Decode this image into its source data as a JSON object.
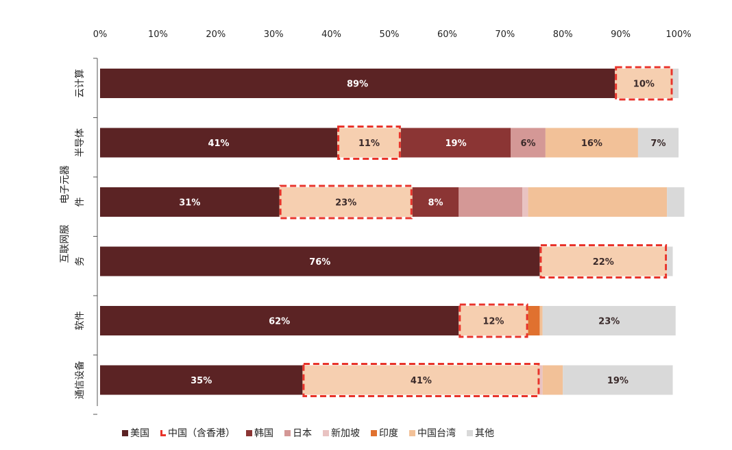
{
  "chart_data": {
    "type": "bar",
    "orientation": "horizontal",
    "stacked": true,
    "x_axis_position": "top",
    "xlim": [
      0,
      100
    ],
    "x_ticks": [
      "0%",
      "10%",
      "20%",
      "30%",
      "40%",
      "50%",
      "60%",
      "70%",
      "80%",
      "90%",
      "100%"
    ],
    "grid": false,
    "legend_position": "bottom",
    "categories": [
      "云计算",
      "半导体",
      "电子元器件",
      "互联网服务",
      "软件",
      "通信设备"
    ],
    "series": [
      {
        "name": "美国",
        "color": "#5b2324",
        "values": [
          89,
          41,
          31,
          76,
          62,
          35
        ],
        "labels": [
          "89%",
          "41%",
          "31%",
          "76%",
          "62%",
          "35%"
        ]
      },
      {
        "name": "中国（含香港）",
        "color": "#f6cfb0",
        "values": [
          10,
          11,
          23,
          22,
          12,
          41
        ],
        "labels": [
          "10%",
          "11%",
          "23%",
          "22%",
          "12%",
          "41%"
        ],
        "highlight": "red-dashed-border"
      },
      {
        "name": "韩国",
        "color": "#8b3534",
        "values": [
          0,
          19,
          8,
          0,
          0,
          0
        ],
        "labels": [
          "",
          "19%",
          "8%",
          "",
          "",
          ""
        ]
      },
      {
        "name": "日本",
        "color": "#d49896",
        "values": [
          0,
          6,
          11,
          0,
          0,
          0
        ],
        "labels": [
          "",
          "6%",
          "",
          "",
          "",
          ""
        ]
      },
      {
        "name": "新加坡",
        "color": "#e9c3c2",
        "values": [
          0,
          0,
          1,
          0,
          0,
          0.5
        ],
        "labels": [
          "",
          "",
          "",
          "",
          "",
          ""
        ]
      },
      {
        "name": "印度",
        "color": "#e0712f",
        "values": [
          0,
          0,
          0,
          0,
          2,
          0
        ],
        "labels": [
          "",
          "",
          "",
          "",
          "",
          ""
        ]
      },
      {
        "name": "中国台湾",
        "color": "#f2c198",
        "values": [
          0,
          16,
          24,
          0,
          0.5,
          3.5
        ],
        "labels": [
          "",
          "16%",
          "",
          "",
          "",
          ""
        ]
      },
      {
        "name": "其他",
        "color": "#d9d9d9",
        "values": [
          1,
          7,
          3,
          1,
          23,
          19
        ],
        "labels": [
          "",
          "7%",
          "",
          "",
          "23%",
          "19%"
        ]
      }
    ]
  },
  "legend": [
    {
      "label": "美国",
      "color": "#5b2324",
      "swatch": "square"
    },
    {
      "label": "中国（含香港）",
      "color": "#e8332a",
      "swatch": "corner"
    },
    {
      "label": "韩国",
      "color": "#8b3534",
      "swatch": "square"
    },
    {
      "label": "日本",
      "color": "#d49896",
      "swatch": "square"
    },
    {
      "label": "新加坡",
      "color": "#e9c3c2",
      "swatch": "square"
    },
    {
      "label": "印度",
      "color": "#e0712f",
      "swatch": "square"
    },
    {
      "label": "中国台湾",
      "color": "#f2c198",
      "swatch": "square"
    },
    {
      "label": "其他",
      "color": "#d9d9d9",
      "swatch": "square"
    }
  ],
  "colors": {
    "highlight_border": "#e8332a"
  }
}
